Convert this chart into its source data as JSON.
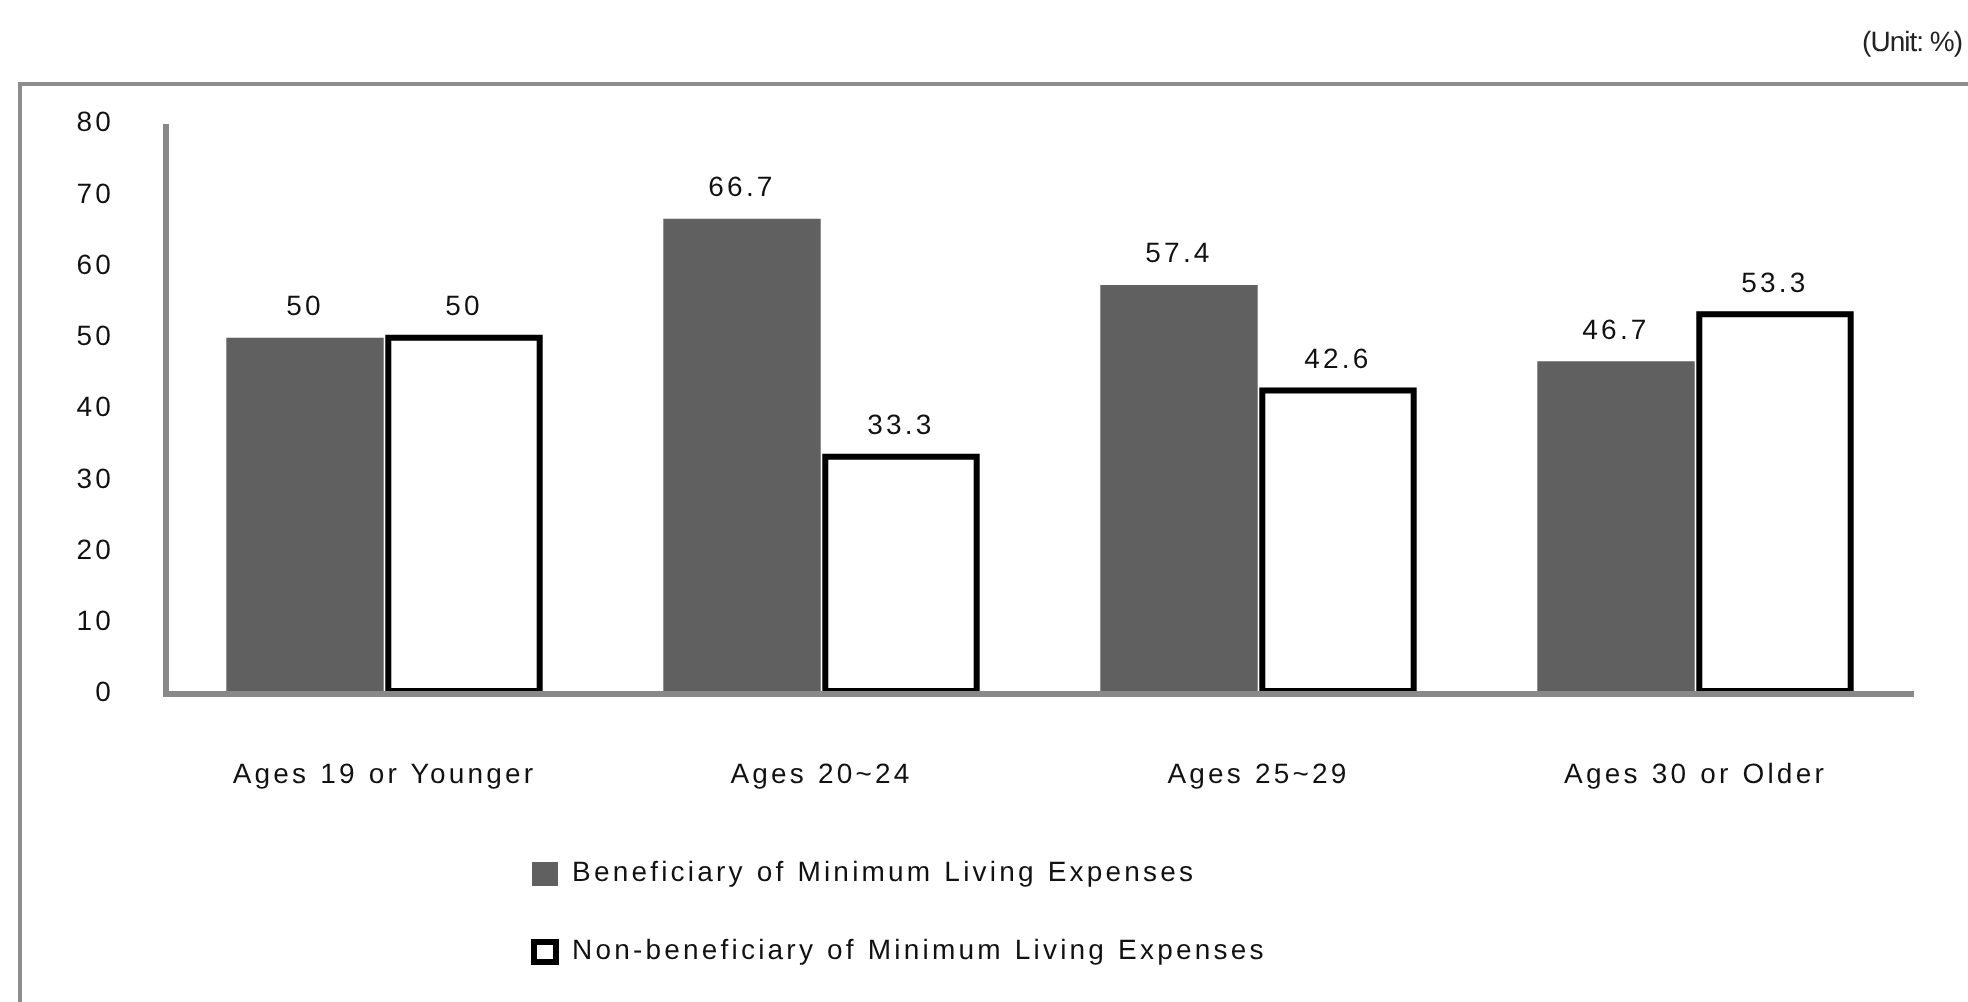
{
  "chart_data": {
    "type": "bar",
    "annotations": [
      "(Unit: %)"
    ],
    "categories": [
      "Ages 19 or Younger",
      "Ages 20~24",
      "Ages 25~29",
      "Ages 30 or Older"
    ],
    "series": [
      {
        "name": "Beneficiary of Minimum Living Expenses",
        "color": "#606060",
        "values": [
          50,
          66.7,
          57.4,
          46.7
        ]
      },
      {
        "name": "Non-beneficiary of Minimum Living Expenses",
        "color": "#ffffff",
        "values": [
          50,
          33.3,
          42.6,
          53.3
        ]
      }
    ],
    "ylim": [
      0,
      80
    ],
    "yticks": [
      0,
      10,
      20,
      30,
      40,
      50,
      60,
      70,
      80
    ],
    "data_labels": true,
    "legend": "bottom",
    "grid": false
  }
}
